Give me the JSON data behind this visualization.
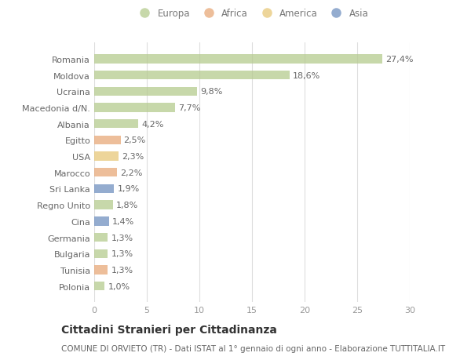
{
  "countries": [
    "Romania",
    "Moldova",
    "Ucraina",
    "Macedonia d/N.",
    "Albania",
    "Egitto",
    "USA",
    "Marocco",
    "Sri Lanka",
    "Regno Unito",
    "Cina",
    "Germania",
    "Bulgaria",
    "Tunisia",
    "Polonia"
  ],
  "values": [
    27.4,
    18.6,
    9.8,
    7.7,
    4.2,
    2.5,
    2.3,
    2.2,
    1.9,
    1.8,
    1.4,
    1.3,
    1.3,
    1.3,
    1.0
  ],
  "labels": [
    "27,4%",
    "18,6%",
    "9,8%",
    "7,7%",
    "4,2%",
    "2,5%",
    "2,3%",
    "2,2%",
    "1,9%",
    "1,8%",
    "1,4%",
    "1,3%",
    "1,3%",
    "1,3%",
    "1,0%"
  ],
  "colors": [
    "#b5cb8e",
    "#b5cb8e",
    "#b5cb8e",
    "#b5cb8e",
    "#b5cb8e",
    "#e8a878",
    "#e8c878",
    "#e8a878",
    "#7090c0",
    "#b5cb8e",
    "#7090c0",
    "#b5cb8e",
    "#b5cb8e",
    "#e8a878",
    "#b5cb8e"
  ],
  "legend_labels": [
    "Europa",
    "Africa",
    "America",
    "Asia"
  ],
  "legend_colors": [
    "#b5cb8e",
    "#e8a878",
    "#e8c878",
    "#7090c0"
  ],
  "title": "Cittadini Stranieri per Cittadinanza",
  "subtitle": "COMUNE DI ORVIETO (TR) - Dati ISTAT al 1° gennaio di ogni anno - Elaborazione TUTTITALIA.IT",
  "xlim": [
    0,
    30
  ],
  "xticks": [
    0,
    5,
    10,
    15,
    20,
    25,
    30
  ],
  "background_color": "#ffffff",
  "grid_color": "#dddddd",
  "bar_height": 0.55,
  "title_fontsize": 10,
  "subtitle_fontsize": 7.5,
  "label_fontsize": 8,
  "tick_fontsize": 8,
  "legend_fontsize": 8.5
}
